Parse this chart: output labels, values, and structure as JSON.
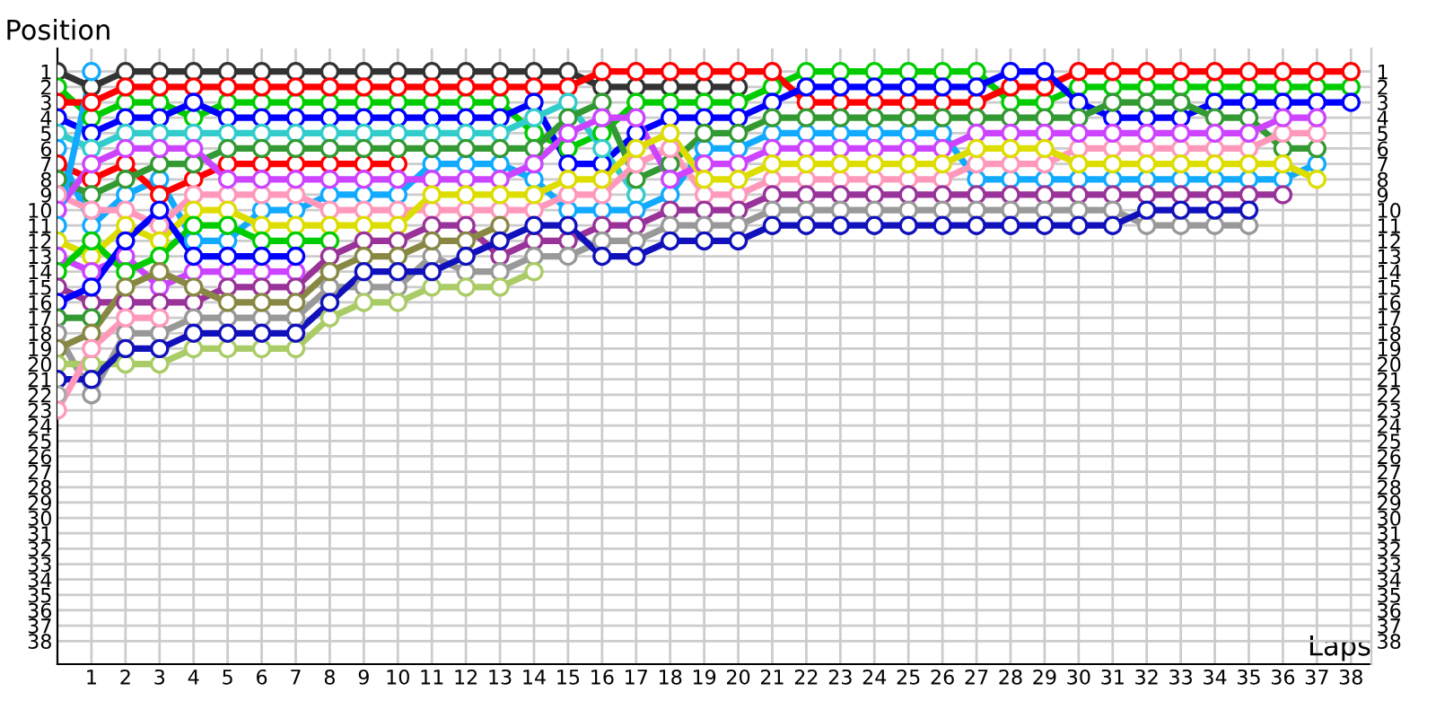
{
  "chart_data": {
    "type": "line",
    "xlabel": "Laps",
    "ylabel": "Position",
    "marker": "circle",
    "grid": true,
    "x": [
      0,
      1,
      2,
      3,
      4,
      5,
      6,
      7,
      8,
      9,
      10,
      11,
      12,
      13,
      14,
      15,
      16,
      17,
      18,
      19,
      20,
      21,
      22,
      23,
      24,
      25,
      26,
      27,
      28,
      29,
      30,
      31,
      32,
      33,
      34,
      35,
      36,
      37,
      38
    ],
    "xlim": [
      0,
      38.6
    ],
    "xticks": [
      1,
      2,
      3,
      4,
      5,
      6,
      7,
      8,
      9,
      10,
      11,
      12,
      13,
      14,
      15,
      16,
      17,
      18,
      19,
      20,
      21,
      22,
      23,
      24,
      25,
      26,
      27,
      28,
      29,
      30,
      31,
      32,
      33,
      34,
      35,
      36,
      37,
      38
    ],
    "ylim": [
      39.5,
      -0.5
    ],
    "yticks": [
      1,
      2,
      3,
      4,
      5,
      6,
      7,
      8,
      9,
      10,
      11,
      12,
      13,
      14,
      15,
      16,
      17,
      18,
      19,
      20,
      21,
      22,
      23,
      24,
      25,
      26,
      27,
      28,
      29,
      30,
      31,
      32,
      33,
      34,
      35,
      36,
      37,
      38
    ],
    "y2lim": [
      39.5,
      -0.5
    ],
    "y2ticks": [
      1,
      2,
      3,
      4,
      5,
      6,
      7,
      8,
      9,
      10,
      11,
      12,
      13,
      14,
      15,
      16,
      17,
      18,
      19,
      20,
      21,
      22,
      23,
      24,
      25,
      26,
      27,
      28,
      29,
      30,
      31,
      32,
      33,
      34,
      35,
      36,
      37,
      38
    ],
    "series": [
      {
        "color": "#333333",
        "values": [
          1,
          2,
          1,
          1,
          1,
          1,
          1,
          1,
          1,
          1,
          1,
          1,
          1,
          1,
          1,
          1,
          2,
          2,
          2,
          2,
          2,
          null,
          null,
          null,
          null,
          null,
          null,
          null,
          null,
          null,
          null,
          null,
          null,
          null,
          null,
          null,
          null,
          null,
          null
        ]
      },
      {
        "color": "#00cc00",
        "values": [
          2,
          4,
          3,
          3,
          4,
          3,
          3,
          3,
          3,
          3,
          3,
          3,
          3,
          3,
          5,
          6,
          5,
          3,
          3,
          3,
          3,
          2,
          1,
          1,
          1,
          1,
          1,
          1,
          3,
          3,
          2,
          2,
          2,
          2,
          2,
          2,
          2,
          2,
          2
        ]
      },
      {
        "color": "#ff0000",
        "values": [
          3,
          3,
          2,
          2,
          2,
          2,
          2,
          2,
          2,
          2,
          2,
          2,
          2,
          2,
          2,
          2,
          1,
          1,
          1,
          1,
          1,
          1,
          3,
          3,
          3,
          3,
          3,
          3,
          2,
          2,
          1,
          1,
          1,
          1,
          1,
          1,
          1,
          1,
          1
        ]
      },
      {
        "color": "#0000ff",
        "values": [
          4,
          5,
          4,
          4,
          3,
          4,
          4,
          4,
          4,
          4,
          4,
          4,
          4,
          4,
          3,
          7,
          7,
          5,
          4,
          4,
          4,
          3,
          2,
          2,
          2,
          2,
          2,
          2,
          1,
          1,
          3,
          4,
          4,
          4,
          3,
          3,
          3,
          3,
          3
        ]
      },
      {
        "color": "#33cccc",
        "values": [
          5,
          6,
          5,
          5,
          5,
          5,
          5,
          5,
          5,
          5,
          5,
          5,
          5,
          5,
          4,
          3,
          6,
          9,
          null,
          null,
          null,
          null,
          null,
          null,
          null,
          null,
          null,
          null,
          null,
          null,
          null,
          null,
          null,
          null,
          null,
          null,
          null,
          null,
          null
        ]
      },
      {
        "color": "#11aaff",
        "values": [
          6,
          11,
          9,
          8,
          12,
          12,
          10,
          10,
          9,
          9,
          9,
          7,
          7,
          7,
          8,
          10,
          10,
          10,
          9,
          6,
          6,
          5,
          5,
          5,
          5,
          5,
          5,
          8,
          8,
          8,
          8,
          8,
          8,
          8,
          8,
          8,
          8,
          7,
          null
        ]
      },
      {
        "color": "#ff0000",
        "values": [
          7,
          8,
          7,
          9,
          8,
          7,
          7,
          7,
          7,
          7,
          7,
          null,
          null,
          null,
          null,
          null,
          null,
          null,
          null,
          null,
          null,
          null,
          null,
          null,
          null,
          null,
          null,
          null,
          null,
          null,
          null,
          null,
          null,
          null,
          null,
          null,
          null,
          null,
          null
        ]
      },
      {
        "color": "#339933",
        "values": [
          8,
          9,
          8,
          7,
          7,
          6,
          6,
          6,
          6,
          6,
          6,
          6,
          6,
          6,
          6,
          4,
          3,
          8,
          7,
          5,
          5,
          4,
          4,
          4,
          4,
          4,
          4,
          4,
          4,
          4,
          4,
          3,
          3,
          3,
          4,
          4,
          6,
          6,
          null
        ]
      },
      {
        "color": "#ff99bb",
        "values": [
          9,
          10,
          10,
          11,
          9,
          9,
          9,
          9,
          10,
          10,
          10,
          10,
          10,
          10,
          10,
          9,
          9,
          7,
          6,
          9,
          9,
          8,
          8,
          8,
          8,
          8,
          8,
          7,
          7,
          7,
          6,
          6,
          6,
          6,
          6,
          6,
          5,
          5,
          null
        ]
      },
      {
        "color": "#cc44ff",
        "values": [
          10,
          7,
          6,
          6,
          6,
          8,
          8,
          8,
          8,
          8,
          8,
          8,
          8,
          8,
          7,
          5,
          4,
          4,
          8,
          7,
          7,
          6,
          6,
          6,
          6,
          6,
          6,
          5,
          5,
          5,
          5,
          5,
          5,
          5,
          5,
          5,
          4,
          4,
          null
        ]
      },
      {
        "color": "#11aaff",
        "values": [
          11,
          1,
          null,
          null,
          null,
          null,
          null,
          null,
          null,
          null,
          null,
          null,
          null,
          null,
          null,
          null,
          null,
          null,
          null,
          null,
          null,
          null,
          null,
          null,
          null,
          null,
          null,
          null,
          null,
          null,
          null,
          null,
          null,
          null,
          null,
          null,
          null,
          null,
          null
        ]
      },
      {
        "color": "#dddd00",
        "values": [
          12,
          13,
          11,
          12,
          10,
          10,
          11,
          11,
          11,
          11,
          11,
          9,
          9,
          9,
          9,
          8,
          8,
          6,
          5,
          8,
          8,
          7,
          7,
          7,
          7,
          7,
          7,
          6,
          6,
          6,
          7,
          7,
          7,
          7,
          7,
          7,
          7,
          8,
          null
        ]
      },
      {
        "color": "#cc44ff",
        "values": [
          13,
          14,
          13,
          15,
          14,
          14,
          14,
          14,
          null,
          null,
          null,
          null,
          null,
          null,
          null,
          null,
          null,
          null,
          null,
          null,
          null,
          null,
          null,
          null,
          null,
          null,
          null,
          null,
          null,
          null,
          null,
          null,
          null,
          null,
          null,
          null,
          null,
          null,
          null
        ]
      },
      {
        "color": "#00cc00",
        "values": [
          14,
          12,
          14,
          13,
          11,
          11,
          12,
          12,
          12,
          null,
          null,
          null,
          null,
          null,
          null,
          null,
          null,
          null,
          null,
          null,
          null,
          null,
          null,
          null,
          null,
          null,
          null,
          null,
          null,
          null,
          null,
          null,
          null,
          null,
          null,
          null,
          null,
          null,
          null
        ]
      },
      {
        "color": "#993399",
        "values": [
          15,
          16,
          16,
          16,
          16,
          15,
          15,
          15,
          13,
          12,
          12,
          11,
          11,
          13,
          12,
          12,
          11,
          11,
          10,
          10,
          10,
          9,
          9,
          9,
          9,
          9,
          9,
          9,
          9,
          9,
          9,
          9,
          9,
          9,
          9,
          9,
          9,
          null,
          null
        ]
      },
      {
        "color": "#0000ff",
        "values": [
          16,
          15,
          12,
          10,
          13,
          13,
          13,
          13,
          null,
          null,
          null,
          null,
          null,
          null,
          null,
          null,
          null,
          null,
          null,
          null,
          null,
          null,
          null,
          null,
          null,
          null,
          null,
          null,
          null,
          null,
          null,
          null,
          null,
          null,
          null,
          null,
          null,
          null,
          null
        ]
      },
      {
        "color": "#339933",
        "values": [
          17,
          17,
          null,
          null,
          null,
          null,
          null,
          null,
          null,
          null,
          null,
          null,
          null,
          null,
          null,
          null,
          null,
          null,
          null,
          null,
          null,
          null,
          null,
          null,
          null,
          null,
          null,
          null,
          null,
          null,
          null,
          null,
          null,
          null,
          null,
          null,
          null,
          null,
          null
        ]
      },
      {
        "color": "#999999",
        "values": [
          18,
          22,
          18,
          18,
          17,
          17,
          17,
          17,
          15,
          15,
          15,
          13,
          14,
          14,
          13,
          13,
          12,
          12,
          11,
          11,
          11,
          10,
          10,
          10,
          10,
          10,
          10,
          10,
          10,
          10,
          10,
          10,
          11,
          11,
          11,
          11,
          null,
          null,
          null
        ]
      },
      {
        "color": "#888844",
        "values": [
          19,
          18,
          15,
          14,
          15,
          16,
          16,
          16,
          14,
          13,
          13,
          12,
          12,
          11,
          null,
          null,
          null,
          null,
          null,
          null,
          null,
          null,
          null,
          null,
          null,
          null,
          null,
          null,
          null,
          null,
          null,
          null,
          null,
          null,
          null,
          null,
          null,
          null,
          null
        ]
      },
      {
        "color": "#aacc66",
        "values": [
          20,
          20,
          20,
          20,
          19,
          19,
          19,
          19,
          17,
          16,
          16,
          15,
          15,
          15,
          14,
          null,
          null,
          null,
          null,
          null,
          null,
          null,
          null,
          null,
          null,
          null,
          null,
          null,
          null,
          null,
          null,
          null,
          null,
          null,
          null,
          null,
          null,
          null,
          null
        ]
      },
      {
        "color": "#1111bb",
        "values": [
          21,
          21,
          19,
          19,
          18,
          18,
          18,
          18,
          16,
          14,
          14,
          14,
          13,
          12,
          11,
          11,
          13,
          13,
          12,
          12,
          12,
          11,
          11,
          11,
          11,
          11,
          11,
          11,
          11,
          11,
          11,
          11,
          10,
          10,
          10,
          10,
          null,
          null,
          null
        ]
      },
      {
        "color": "#aaaaaa",
        "values": [
          22,
          null,
          null,
          null,
          null,
          null,
          null,
          null,
          null,
          null,
          null,
          null,
          null,
          null,
          null,
          null,
          null,
          null,
          null,
          null,
          null,
          null,
          null,
          null,
          null,
          null,
          null,
          null,
          null,
          null,
          null,
          null,
          null,
          null,
          null,
          null,
          null,
          null,
          null
        ]
      },
      {
        "color": "#ff99bb",
        "values": [
          23,
          19,
          17,
          17,
          null,
          null,
          null,
          null,
          null,
          null,
          null,
          null,
          null,
          null,
          null,
          null,
          null,
          null,
          null,
          null,
          null,
          null,
          null,
          null,
          null,
          null,
          null,
          null,
          null,
          null,
          null,
          null,
          null,
          null,
          null,
          null,
          null,
          null,
          null
        ]
      }
    ]
  }
}
